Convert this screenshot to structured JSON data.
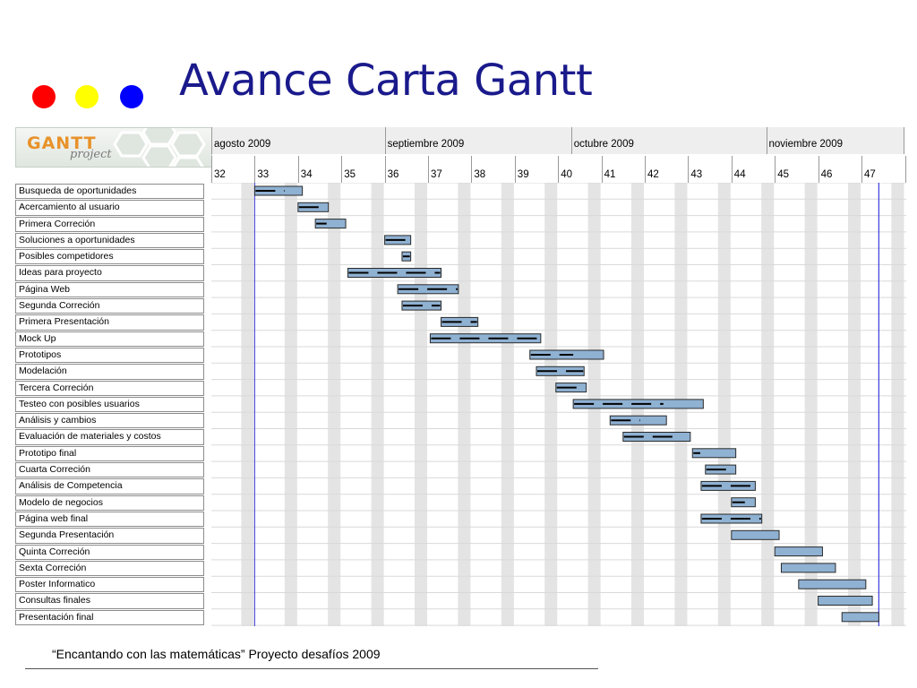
{
  "slide": {
    "title": "Avance Carta Gantt",
    "footer": "“Encantando con las matemáticas” Proyecto desafíos 2009",
    "dots": [
      {
        "name": "red",
        "color": "#ff0000"
      },
      {
        "name": "yellow",
        "color": "#ffff00"
      },
      {
        "name": "blue",
        "color": "#0000ff"
      }
    ]
  },
  "gantt": {
    "logo_text": "GANTT",
    "logo_sub": "project",
    "months": [
      {
        "label": "agosto 2009"
      },
      {
        "label": "septiembre 2009"
      },
      {
        "label": "octubre 2009"
      },
      {
        "label": "noviembre 2009"
      }
    ],
    "weeks": [
      "32",
      "33",
      "34",
      "35",
      "36",
      "37",
      "38",
      "39",
      "40",
      "41",
      "42",
      "43",
      "44",
      "45",
      "46",
      "47"
    ],
    "today_week": 47.4,
    "tasks": [
      {
        "name": "Busqueda de oportunidades",
        "start": 33.0,
        "end": 34.1,
        "progress": 0.65
      },
      {
        "name": "Acercamiento al usuario",
        "start": 34.0,
        "end": 34.7,
        "progress": 1.0
      },
      {
        "name": "Primera Correción",
        "start": 34.4,
        "end": 35.1,
        "progress": 0.4
      },
      {
        "name": "Soluciones a oportunidades",
        "start": 36.0,
        "end": 36.6,
        "progress": 1.0
      },
      {
        "name": "Posibles competidores",
        "start": 36.4,
        "end": 36.6,
        "progress": 1.0
      },
      {
        "name": "Ideas para proyecto",
        "start": 35.15,
        "end": 37.3,
        "progress": 1.0
      },
      {
        "name": "Página Web",
        "start": 36.3,
        "end": 37.7,
        "progress": 1.0
      },
      {
        "name": "Segunda Correción",
        "start": 36.4,
        "end": 37.3,
        "progress": 1.0
      },
      {
        "name": "Primera Presentación",
        "start": 37.3,
        "end": 38.15,
        "progress": 1.0
      },
      {
        "name": "Mock Up",
        "start": 37.05,
        "end": 39.6,
        "progress": 1.0
      },
      {
        "name": "Prototipos",
        "start": 39.35,
        "end": 41.05,
        "progress": 0.6
      },
      {
        "name": "Modelación",
        "start": 39.5,
        "end": 40.6,
        "progress": 1.0
      },
      {
        "name": "Tercera Correción",
        "start": 39.95,
        "end": 40.65,
        "progress": 1.0
      },
      {
        "name": "Testeo con posibles usuarios",
        "start": 40.35,
        "end": 43.35,
        "progress": 0.7
      },
      {
        "name": "Análisis y cambios",
        "start": 41.2,
        "end": 42.5,
        "progress": 0.55
      },
      {
        "name": "Evaluación de materiales y costos",
        "start": 41.5,
        "end": 43.05,
        "progress": 0.85
      },
      {
        "name": "Prototipo final",
        "start": 43.1,
        "end": 44.1,
        "progress": 0.2
      },
      {
        "name": "Cuarta Correción",
        "start": 43.4,
        "end": 44.1,
        "progress": 1.0
      },
      {
        "name": "Análisis de Competencia",
        "start": 43.3,
        "end": 44.55,
        "progress": 1.0
      },
      {
        "name": "Modelo de negocios",
        "start": 44.0,
        "end": 44.55,
        "progress": 0.6
      },
      {
        "name": "Página web final",
        "start": 43.3,
        "end": 44.7,
        "progress": 1.0
      },
      {
        "name": "Segunda Presentación",
        "start": 44.0,
        "end": 45.1,
        "progress": 0.0
      },
      {
        "name": "Quinta Correción",
        "start": 45.0,
        "end": 46.1,
        "progress": 0.0
      },
      {
        "name": "Sexta Correción",
        "start": 45.15,
        "end": 46.4,
        "progress": 0.0
      },
      {
        "name": "Poster Informatico",
        "start": 45.55,
        "end": 47.1,
        "progress": 0.0
      },
      {
        "name": "Consultas finales",
        "start": 46.0,
        "end": 47.25,
        "progress": 0.0
      },
      {
        "name": "Presentación final",
        "start": 46.55,
        "end": 47.4,
        "progress": 0.0
      }
    ],
    "colors": {
      "bar_fill": "#8fb1d2",
      "bar_border": "#2a2a2a",
      "progress_line": "#000000",
      "today_line": "#3b3bd9",
      "weekend_shade": "#e4e4e4",
      "row_line": "#d9d9d9"
    }
  }
}
